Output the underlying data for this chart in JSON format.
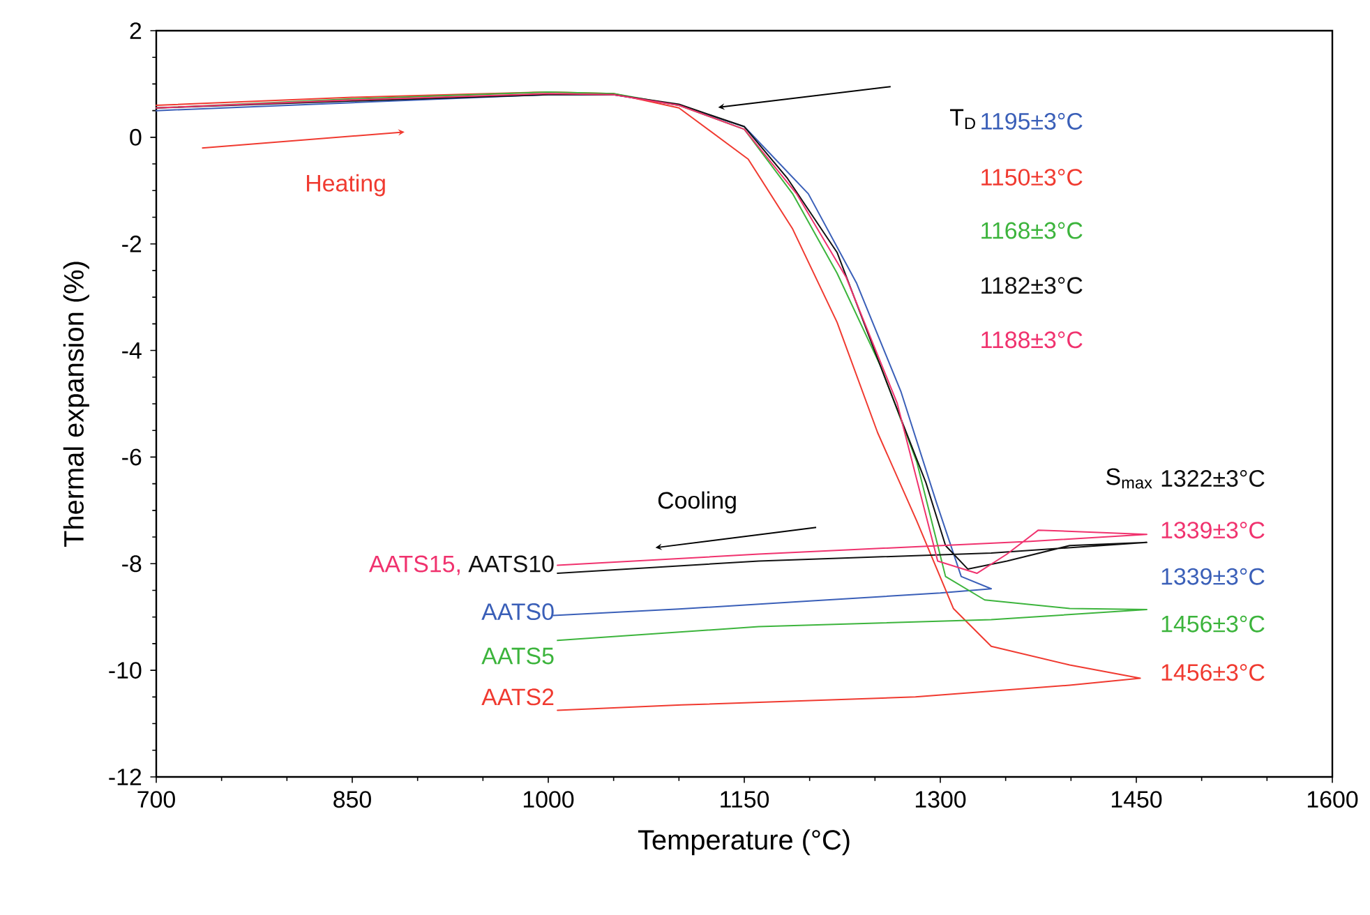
{
  "chart_data": {
    "type": "line",
    "xlabel": "Temperature (°C)",
    "ylabel": "Thermal expansion (%)",
    "xlim": [
      700,
      1600
    ],
    "xticks": [
      700,
      850,
      1000,
      1150,
      1300,
      1450,
      1600
    ],
    "ylim": [
      -12,
      2
    ],
    "yticks": [
      -12,
      -10,
      -8,
      -6,
      -4,
      -2,
      0,
      2
    ],
    "grid": false,
    "legend": false,
    "marker": "none",
    "line_style": "solid",
    "annotations": [
      "Heating",
      "Cooling",
      "T$_{D}$",
      "1195±3°C",
      "1150±3°C",
      "1168±3°C",
      "1182±3°C",
      "1188±3°C",
      "S$_{max}$",
      "1322±3°C",
      "1339±3°C",
      "1339±3°C",
      "1456±3°C",
      "1456±3°C",
      ","
    ],
    "series": [
      {
        "name": "AATS0",
        "color": "#3a5fb8",
        "x": [
          700,
          850,
          1000,
          1050,
          1100,
          1150,
          1199,
          1236,
          1270,
          1297,
          1316,
          1339,
          1300,
          1200,
          1100,
          1004
        ],
        "values": [
          0.5,
          0.65,
          0.8,
          0.8,
          0.6,
          0.2,
          -1.06,
          -2.74,
          -4.78,
          -6.85,
          -8.24,
          -8.47,
          -8.55,
          -8.7,
          -8.85,
          -8.97
        ]
      },
      {
        "name": "AATS2",
        "color": "#f03a30",
        "x": [
          700,
          850,
          1000,
          1050,
          1100,
          1153,
          1187,
          1221,
          1252,
          1282,
          1310,
          1339,
          1399,
          1453,
          1399,
          1281,
          1102,
          1007
        ],
        "values": [
          0.6,
          0.75,
          0.85,
          0.82,
          0.55,
          -0.41,
          -1.72,
          -3.47,
          -5.54,
          -7.2,
          -8.84,
          -9.55,
          -9.9,
          -10.15,
          -10.28,
          -10.5,
          -10.65,
          -10.75
        ]
      },
      {
        "name": "AATS5",
        "color": "#3cb43c",
        "x": [
          700,
          850,
          1000,
          1050,
          1100,
          1150,
          1187,
          1221,
          1255,
          1282,
          1304,
          1334,
          1399,
          1458,
          1339,
          1161,
          1007
        ],
        "values": [
          0.55,
          0.72,
          0.85,
          0.82,
          0.6,
          0.15,
          -1.06,
          -2.55,
          -4.33,
          -6.09,
          -8.24,
          -8.68,
          -8.84,
          -8.86,
          -9.05,
          -9.18,
          -9.44
        ]
      },
      {
        "name": "AATS10",
        "color": "#111111",
        "x": [
          700,
          850,
          1000,
          1050,
          1100,
          1150,
          1183,
          1221,
          1259,
          1289,
          1304,
          1321,
          1351,
          1399,
          1458,
          1339,
          1161,
          1007
        ],
        "values": [
          0.55,
          0.68,
          0.8,
          0.8,
          0.62,
          0.2,
          -0.77,
          -2.16,
          -4.6,
          -6.48,
          -7.66,
          -8.1,
          -7.95,
          -7.66,
          -7.6,
          -7.8,
          -7.95,
          -8.18
        ]
      },
      {
        "name": "AATS15",
        "color": "#f0326e",
        "x": [
          700,
          850,
          1000,
          1050,
          1100,
          1150,
          1190,
          1228,
          1267,
          1298,
          1328,
          1351,
          1375,
          1458,
          1369,
          1161,
          1007
        ],
        "values": [
          0.55,
          0.7,
          0.82,
          0.8,
          0.6,
          0.15,
          -1.06,
          -2.63,
          -4.99,
          -7.95,
          -8.18,
          -7.82,
          -7.37,
          -7.45,
          -7.58,
          -7.82,
          -8.03
        ]
      }
    ]
  }
}
